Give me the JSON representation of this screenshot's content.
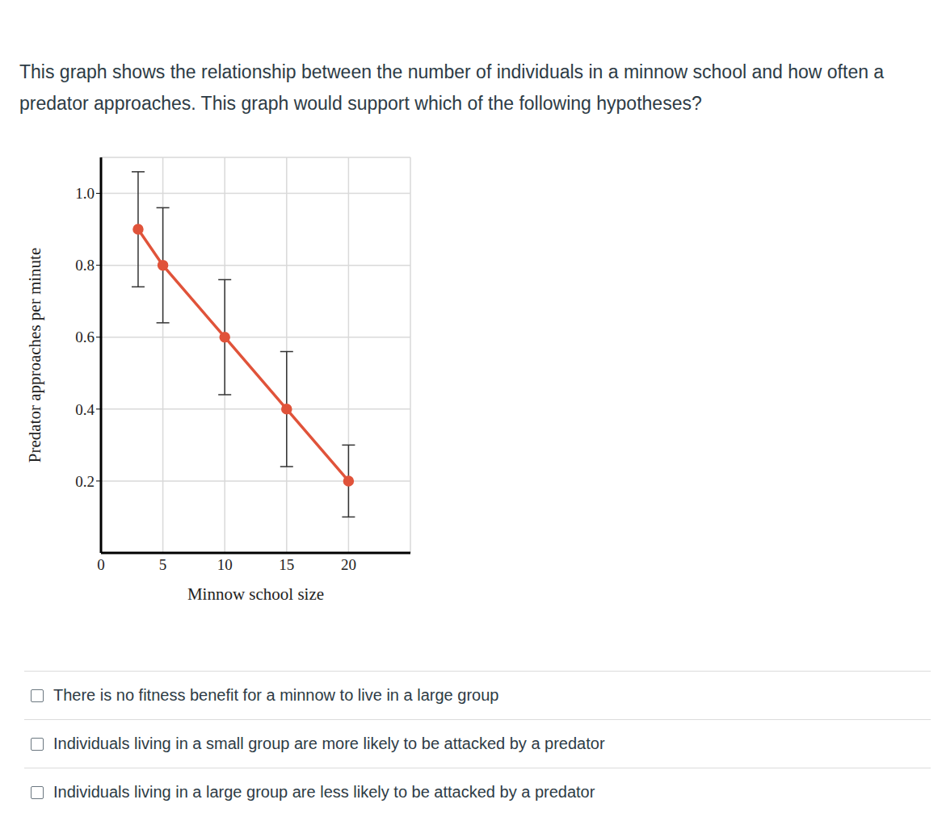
{
  "question": "This graph shows the relationship between the number of individuals in a minnow school and how often a predator approaches. This graph would support which  of the following hypotheses?",
  "chart_data": {
    "type": "line",
    "x": [
      3,
      5,
      10,
      15,
      20
    ],
    "values": [
      0.9,
      0.8,
      0.6,
      0.4,
      0.2
    ],
    "errors": [
      0.16,
      0.16,
      0.16,
      0.16,
      0.1
    ],
    "color": "#e0533a",
    "marker": "circle",
    "xlabel": "Minnow school size",
    "ylabel": "Predator approaches per minute",
    "xlim": [
      0,
      25
    ],
    "ylim": [
      0,
      1.1
    ],
    "xticks": [
      0,
      5,
      10,
      15,
      20
    ],
    "yticks": [
      0.2,
      0.4,
      0.6,
      0.8,
      {
        "value": 1,
        "label": "1.0"
      }
    ],
    "grid": true
  },
  "options": [
    "There is no fitness benefit for a minnow to live in a large group",
    "Individuals living in a small group are more likely to be attacked by a predator",
    "Individuals living in a large group are less likely to be attacked by a predator"
  ]
}
